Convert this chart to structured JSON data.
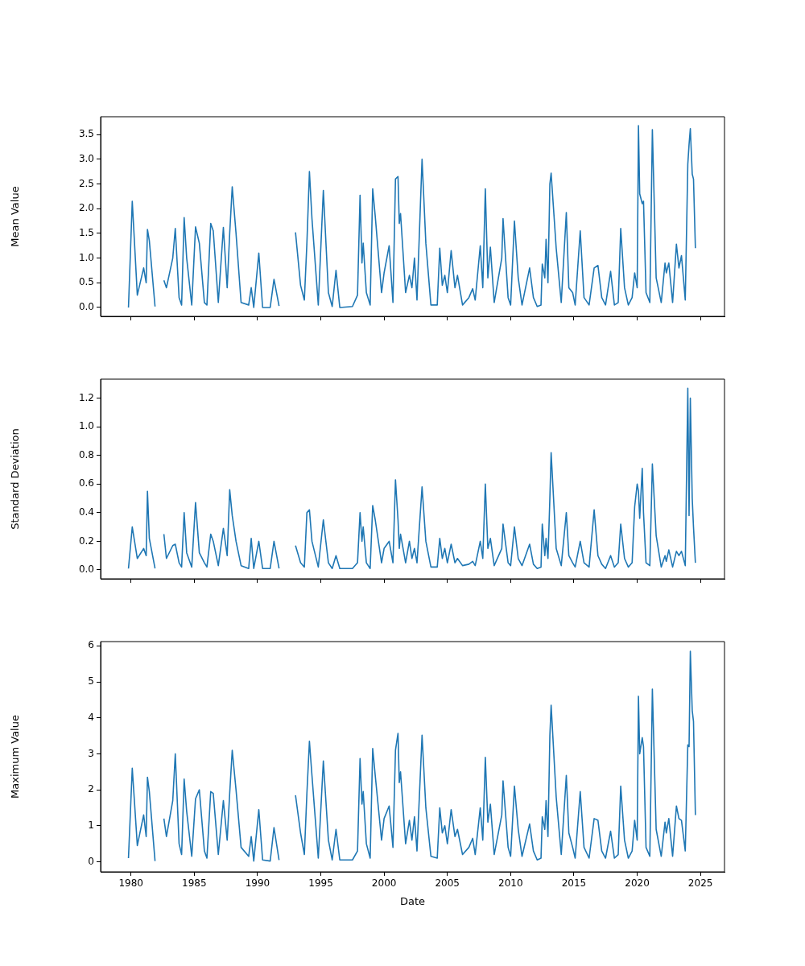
{
  "chart_data": [
    {
      "type": "line",
      "ylabel": "Mean Value",
      "tick_labels": "y",
      "x": [
        1979.8,
        1980.1,
        1980.5,
        1981.0,
        1981.2,
        1981.3,
        1981.45,
        1981.9,
        1982.2,
        1982.6,
        1982.8,
        1983.3,
        1983.5,
        1983.8,
        1984.0,
        1984.2,
        1984.4,
        1984.8,
        1985.1,
        1985.4,
        1985.8,
        1986.0,
        1986.3,
        1986.5,
        1986.9,
        1987.3,
        1987.6,
        1987.8,
        1988.0,
        1988.3,
        1988.7,
        1989.3,
        1989.5,
        1989.7,
        1990.1,
        1990.4,
        1991.0,
        1991.3,
        1991.7,
        1992.3,
        1993.0,
        1993.4,
        1993.7,
        1993.9,
        1994.1,
        1994.3,
        1994.8,
        1995.2,
        1995.6,
        1995.9,
        1996.2,
        1996.5,
        1997.5,
        1997.9,
        1998.1,
        1998.25,
        1998.35,
        1998.6,
        1998.9,
        1999.1,
        1999.3,
        1999.8,
        2000.0,
        2000.4,
        2000.7,
        2000.9,
        2001.1,
        2001.2,
        2001.3,
        2001.7,
        2002.0,
        2002.2,
        2002.4,
        2002.6,
        2003.0,
        2003.3,
        2003.7,
        2004.2,
        2004.4,
        2004.6,
        2004.8,
        2005.0,
        2005.3,
        2005.6,
        2005.8,
        2006.2,
        2006.7,
        2007.0,
        2007.2,
        2007.6,
        2007.8,
        2008.0,
        2008.2,
        2008.4,
        2008.7,
        2009.3,
        2009.4,
        2009.8,
        2010.0,
        2010.3,
        2010.6,
        2010.9,
        2011.5,
        2011.8,
        2012.1,
        2012.4,
        2012.5,
        2012.7,
        2012.8,
        2012.95,
        2013.1,
        2013.2,
        2013.6,
        2014.0,
        2014.4,
        2014.6,
        2014.9,
        2015.1,
        2015.5,
        2015.8,
        2016.2,
        2016.6,
        2016.9,
        2017.2,
        2017.5,
        2017.9,
        2018.2,
        2018.5,
        2018.7,
        2019.0,
        2019.3,
        2019.6,
        2019.8,
        2020.0,
        2020.1,
        2020.2,
        2020.4,
        2020.5,
        2020.7,
        2021.0,
        2021.2,
        2021.5,
        2021.9,
        2022.2,
        2022.3,
        2022.5,
        2022.8,
        2023.1,
        2023.3,
        2023.5,
        2023.8,
        2024.0,
        2024.1,
        2024.2,
        2024.35,
        2024.45,
        2024.6
      ],
      "series": [
        {
          "color": "#1f77b4",
          "values": [
            0,
            2.15,
            0.25,
            0.8,
            0.5,
            1.58,
            1.35,
            0.02,
            null,
            0.55,
            0.4,
            1.0,
            1.6,
            0.2,
            0.05,
            1.82,
            1.0,
            0.05,
            1.63,
            1.3,
            0.1,
            0.05,
            1.7,
            1.55,
            0.1,
            1.62,
            0.4,
            1.5,
            2.44,
            1.5,
            0.1,
            0.05,
            0.4,
            0,
            1.1,
            0,
            0,
            0.57,
            0.03,
            null,
            1.52,
            0.45,
            0.15,
            1.3,
            2.75,
            1.8,
            0.05,
            2.37,
            0.3,
            0.02,
            0.75,
            0,
            0.02,
            0.25,
            2.27,
            0.9,
            1.3,
            0.3,
            0.05,
            2.4,
            1.85,
            0.3,
            0.7,
            1.25,
            0.1,
            2.6,
            2.65,
            1.7,
            1.9,
            0.3,
            0.65,
            0.4,
            1.0,
            0.15,
            3.0,
            1.3,
            0.05,
            0.05,
            1.2,
            0.45,
            0.65,
            0.3,
            1.15,
            0.4,
            0.65,
            0.05,
            0.2,
            0.38,
            0.15,
            1.25,
            0.4,
            2.4,
            0.6,
            1.22,
            0.1,
            1.0,
            1.8,
            0.2,
            0.05,
            1.75,
            0.6,
            0.05,
            0.8,
            0.2,
            0.02,
            0.05,
            0.88,
            0.6,
            1.38,
            0.5,
            2.5,
            2.72,
            1.2,
            0.1,
            1.92,
            0.4,
            0.3,
            0.05,
            1.55,
            0.2,
            0.05,
            0.8,
            0.85,
            0.2,
            0.05,
            0.73,
            0.05,
            0.1,
            1.6,
            0.4,
            0.05,
            0.2,
            0.7,
            0.4,
            3.68,
            2.3,
            2.1,
            2.15,
            0.3,
            0.1,
            3.6,
            0.6,
            0.1,
            0.9,
            0.7,
            0.9,
            0.1,
            1.28,
            0.8,
            1.05,
            0.15,
            2.9,
            3.3,
            3.62,
            2.7,
            2.6,
            1.2
          ]
        }
      ],
      "xlim": [
        1977.6,
        2026.9
      ],
      "xticks": [
        1980,
        1985,
        1990,
        1995,
        2000,
        2005,
        2010,
        2015,
        2020,
        2025
      ],
      "ylim": [
        -0.18,
        3.86
      ],
      "yticks": [
        {
          "value": 0,
          "label": "0.0"
        },
        0.5,
        {
          "value": 1,
          "label": "1.0"
        },
        1.5,
        {
          "value": 2,
          "label": "2.0"
        },
        2.5,
        {
          "value": 3,
          "label": "3.0"
        },
        3.5
      ]
    },
    {
      "type": "line",
      "ylabel": "Standard Deviation",
      "tick_labels": "y",
      "x": [
        1979.8,
        1980.1,
        1980.5,
        1981.0,
        1981.2,
        1981.3,
        1981.45,
        1981.9,
        1982.2,
        1982.6,
        1982.8,
        1983.3,
        1983.5,
        1983.8,
        1984.0,
        1984.2,
        1984.4,
        1984.8,
        1985.1,
        1985.4,
        1985.8,
        1986.0,
        1986.3,
        1986.5,
        1986.9,
        1987.3,
        1987.6,
        1987.8,
        1988.0,
        1988.3,
        1988.7,
        1989.3,
        1989.5,
        1989.7,
        1990.1,
        1990.4,
        1991.0,
        1991.3,
        1991.7,
        1992.3,
        1993.0,
        1993.4,
        1993.7,
        1993.9,
        1994.1,
        1994.3,
        1994.8,
        1995.2,
        1995.6,
        1995.9,
        1996.2,
        1996.5,
        1997.5,
        1997.9,
        1998.1,
        1998.25,
        1998.35,
        1998.6,
        1998.9,
        1999.1,
        1999.3,
        1999.8,
        2000.0,
        2000.4,
        2000.7,
        2000.9,
        2001.1,
        2001.2,
        2001.3,
        2001.7,
        2002.0,
        2002.2,
        2002.4,
        2002.6,
        2003.0,
        2003.3,
        2003.7,
        2004.2,
        2004.4,
        2004.6,
        2004.8,
        2005.0,
        2005.3,
        2005.6,
        2005.8,
        2006.2,
        2006.7,
        2007.0,
        2007.2,
        2007.6,
        2007.8,
        2008.0,
        2008.2,
        2008.4,
        2008.7,
        2009.3,
        2009.4,
        2009.8,
        2010.0,
        2010.3,
        2010.6,
        2010.9,
        2011.5,
        2011.8,
        2012.1,
        2012.4,
        2012.5,
        2012.7,
        2012.8,
        2012.95,
        2013.1,
        2013.2,
        2013.6,
        2014.0,
        2014.4,
        2014.6,
        2014.9,
        2015.1,
        2015.5,
        2015.8,
        2016.2,
        2016.6,
        2016.9,
        2017.2,
        2017.5,
        2017.9,
        2018.2,
        2018.5,
        2018.7,
        2019.0,
        2019.3,
        2019.6,
        2019.8,
        2020.0,
        2020.1,
        2020.2,
        2020.4,
        2020.5,
        2020.7,
        2021.0,
        2021.2,
        2021.5,
        2021.9,
        2022.2,
        2022.3,
        2022.5,
        2022.8,
        2023.1,
        2023.3,
        2023.5,
        2023.8,
        2024.0,
        2024.1,
        2024.2,
        2024.35,
        2024.45,
        2024.6
      ],
      "series": [
        {
          "color": "#1f77b4",
          "values": [
            0.01,
            0.3,
            0.08,
            0.15,
            0.1,
            0.55,
            0.22,
            0.01,
            null,
            0.25,
            0.08,
            0.17,
            0.18,
            0.05,
            0.02,
            0.4,
            0.12,
            0.02,
            0.47,
            0.12,
            0.05,
            0.02,
            0.25,
            0.2,
            0.03,
            0.29,
            0.1,
            0.56,
            0.38,
            0.2,
            0.03,
            0.01,
            0.22,
            0.01,
            0.2,
            0.01,
            0.01,
            0.2,
            0.01,
            null,
            0.17,
            0.05,
            0.02,
            0.4,
            0.42,
            0.2,
            0.02,
            0.35,
            0.05,
            0.01,
            0.1,
            0.01,
            0.01,
            0.05,
            0.4,
            0.2,
            0.3,
            0.05,
            0.01,
            0.45,
            0.35,
            0.05,
            0.15,
            0.2,
            0.05,
            0.63,
            0.35,
            0.15,
            0.25,
            0.05,
            0.2,
            0.08,
            0.15,
            0.05,
            0.58,
            0.2,
            0.02,
            0.02,
            0.22,
            0.08,
            0.15,
            0.05,
            0.18,
            0.05,
            0.08,
            0.03,
            0.04,
            0.06,
            0.03,
            0.2,
            0.08,
            0.6,
            0.15,
            0.22,
            0.03,
            0.15,
            0.32,
            0.05,
            0.03,
            0.3,
            0.08,
            0.03,
            0.18,
            0.04,
            0.01,
            0.02,
            0.32,
            0.1,
            0.22,
            0.08,
            0.5,
            0.82,
            0.15,
            0.03,
            0.4,
            0.1,
            0.05,
            0.02,
            0.2,
            0.05,
            0.02,
            0.42,
            0.1,
            0.04,
            0.01,
            0.1,
            0.02,
            0.05,
            0.32,
            0.08,
            0.02,
            0.05,
            0.44,
            0.6,
            0.55,
            0.36,
            0.71,
            0.4,
            0.05,
            0.03,
            0.74,
            0.24,
            0.02,
            0.1,
            0.06,
            0.14,
            0.02,
            0.13,
            0.1,
            0.13,
            0.03,
            1.27,
            0.38,
            1.2,
            0.5,
            0.3,
            0.05
          ]
        }
      ],
      "xlim": [
        1977.6,
        2026.9
      ],
      "xticks": [
        1980,
        1985,
        1990,
        1995,
        2000,
        2005,
        2010,
        2015,
        2020,
        2025
      ],
      "ylim": [
        -0.062,
        1.333
      ],
      "yticks": [
        {
          "value": 0,
          "label": "0.0"
        },
        0.2,
        0.4,
        0.6,
        0.8,
        {
          "value": 1,
          "label": "1.0"
        },
        1.2
      ]
    },
    {
      "type": "line",
      "xlabel": "Date",
      "ylabel": "Maximum Value",
      "x": [
        1979.8,
        1980.1,
        1980.5,
        1981.0,
        1981.2,
        1981.3,
        1981.45,
        1981.9,
        1982.2,
        1982.6,
        1982.8,
        1983.3,
        1983.5,
        1983.8,
        1984.0,
        1984.2,
        1984.4,
        1984.8,
        1985.1,
        1985.4,
        1985.8,
        1986.0,
        1986.3,
        1986.5,
        1986.9,
        1987.3,
        1987.6,
        1987.8,
        1988.0,
        1988.3,
        1988.7,
        1989.3,
        1989.5,
        1989.7,
        1990.1,
        1990.4,
        1991.0,
        1991.3,
        1991.7,
        1992.3,
        1993.0,
        1993.4,
        1993.7,
        1993.9,
        1994.1,
        1994.3,
        1994.8,
        1995.2,
        1995.6,
        1995.9,
        1996.2,
        1996.5,
        1997.5,
        1997.9,
        1998.1,
        1998.25,
        1998.35,
        1998.6,
        1998.9,
        1999.1,
        1999.3,
        1999.8,
        2000.0,
        2000.4,
        2000.7,
        2000.9,
        2001.1,
        2001.2,
        2001.3,
        2001.7,
        2002.0,
        2002.2,
        2002.4,
        2002.6,
        2003.0,
        2003.3,
        2003.7,
        2004.2,
        2004.4,
        2004.6,
        2004.8,
        2005.0,
        2005.3,
        2005.6,
        2005.8,
        2006.2,
        2006.7,
        2007.0,
        2007.2,
        2007.6,
        2007.8,
        2008.0,
        2008.2,
        2008.4,
        2008.7,
        2009.3,
        2009.4,
        2009.8,
        2010.0,
        2010.3,
        2010.6,
        2010.9,
        2011.5,
        2011.8,
        2012.1,
        2012.4,
        2012.5,
        2012.7,
        2012.8,
        2012.95,
        2013.1,
        2013.2,
        2013.6,
        2014.0,
        2014.4,
        2014.6,
        2014.9,
        2015.1,
        2015.5,
        2015.8,
        2016.2,
        2016.6,
        2016.9,
        2017.2,
        2017.5,
        2017.9,
        2018.2,
        2018.5,
        2018.7,
        2019.0,
        2019.3,
        2019.6,
        2019.8,
        2020.0,
        2020.1,
        2020.2,
        2020.4,
        2020.5,
        2020.7,
        2021.0,
        2021.2,
        2021.5,
        2021.9,
        2022.2,
        2022.3,
        2022.5,
        2022.8,
        2023.1,
        2023.3,
        2023.5,
        2023.8,
        2024.0,
        2024.1,
        2024.2,
        2024.35,
        2024.45,
        2024.6
      ],
      "series": [
        {
          "color": "#1f77b4",
          "values": [
            0.1,
            2.6,
            0.45,
            1.3,
            0.7,
            2.35,
            1.95,
            0.02,
            null,
            1.2,
            0.7,
            1.7,
            3.0,
            0.5,
            0.2,
            2.3,
            1.4,
            0.15,
            1.75,
            2.0,
            0.3,
            0.1,
            1.95,
            1.9,
            0.2,
            1.7,
            0.6,
            1.9,
            3.1,
            2.0,
            0.4,
            0.15,
            0.7,
            0.02,
            1.45,
            0.05,
            0.02,
            0.95,
            0.05,
            null,
            1.85,
            0.8,
            0.2,
            1.9,
            3.35,
            2.4,
            0.1,
            2.8,
            0.6,
            0.05,
            0.9,
            0.05,
            0.05,
            0.3,
            2.87,
            1.6,
            1.95,
            0.5,
            0.1,
            3.15,
            2.4,
            0.6,
            1.2,
            1.55,
            0.4,
            3.1,
            3.57,
            2.2,
            2.5,
            0.5,
            1.15,
            0.6,
            1.25,
            0.3,
            3.52,
            1.5,
            0.15,
            0.1,
            1.5,
            0.8,
            1.0,
            0.5,
            1.45,
            0.7,
            0.9,
            0.2,
            0.4,
            0.65,
            0.2,
            1.5,
            0.6,
            2.9,
            1.1,
            1.6,
            0.2,
            1.3,
            2.25,
            0.4,
            0.15,
            2.1,
            0.9,
            0.15,
            1.05,
            0.3,
            0.05,
            0.1,
            1.25,
            0.9,
            1.7,
            0.7,
            3.5,
            4.35,
            1.8,
            0.2,
            2.4,
            0.8,
            0.4,
            0.1,
            1.95,
            0.4,
            0.1,
            1.2,
            1.15,
            0.3,
            0.1,
            0.85,
            0.1,
            0.2,
            2.1,
            0.6,
            0.1,
            0.3,
            1.15,
            0.6,
            4.6,
            3.0,
            3.45,
            3.2,
            0.4,
            0.15,
            4.8,
            0.9,
            0.15,
            1.1,
            0.8,
            1.2,
            0.15,
            1.55,
            1.2,
            1.15,
            0.3,
            3.25,
            3.2,
            5.85,
            4.2,
            3.9,
            1.3
          ]
        }
      ],
      "xlim": [
        1977.6,
        2026.9
      ],
      "xticks": [
        1980,
        1985,
        1990,
        1995,
        2000,
        2005,
        2010,
        2015,
        2020,
        2025
      ],
      "ylim": [
        -0.28,
        6.12
      ],
      "yticks": [
        0,
        1,
        2,
        3,
        4,
        5,
        6
      ]
    }
  ]
}
